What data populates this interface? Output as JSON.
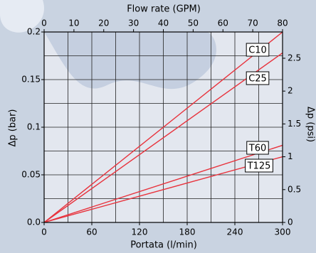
{
  "chart_data": {
    "type": "line",
    "top_axis_label": "Flow rate (GPM)",
    "xlabel": "Portata (l/min)",
    "ylabel": "Δp (bar)",
    "y2label": "Δp (psi)",
    "x": [
      0,
      300
    ],
    "series": [
      {
        "name": "C10",
        "color": "#e8323c",
        "values": [
          0,
          0.2
        ]
      },
      {
        "name": "C25",
        "color": "#e8323c",
        "values": [
          0,
          0.178
        ]
      },
      {
        "name": "T60",
        "color": "#e8323c",
        "values": [
          0,
          0.081
        ]
      },
      {
        "name": "T125",
        "color": "#e8323c",
        "values": [
          0,
          0.069
        ]
      }
    ],
    "xlim": [
      0,
      300
    ],
    "xticks": [
      0,
      60,
      120,
      180,
      240,
      300
    ],
    "ylim": [
      0,
      0.2
    ],
    "yticks": [
      {
        "value": 0,
        "label": "0.0"
      },
      0.05,
      0.1,
      0.15,
      0.2
    ],
    "x2lim": [
      0,
      80
    ],
    "x2ticks": [
      0,
      10,
      20,
      30,
      40,
      50,
      60,
      70,
      80
    ],
    "y2lim": [
      0,
      2.9
    ],
    "y2ticks": [
      0,
      0.5,
      1,
      1.5,
      2,
      2.5
    ],
    "xgrid": [
      0,
      30,
      60,
      90,
      120,
      150,
      180,
      210,
      240,
      270,
      300
    ],
    "ygrid": [
      0,
      0.025,
      0.05,
      0.075,
      0.1,
      0.125,
      0.15,
      0.175,
      0.2
    ],
    "grid": true
  }
}
